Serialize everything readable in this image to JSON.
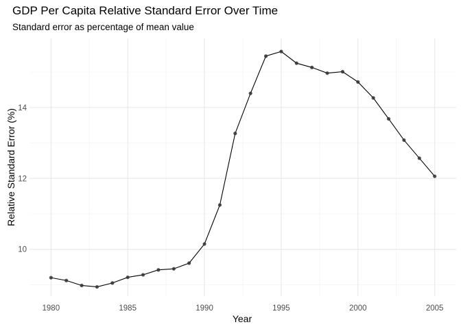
{
  "chart_data": {
    "type": "line",
    "title": "GDP Per Capita Relative Standard Error Over Time",
    "subtitle": "Standard error as percentage of mean value",
    "xlabel": "Year",
    "ylabel": "Relative Standard Error (%)",
    "xlim": [
      1978.6,
      2006.4
    ],
    "ylim": [
      8.68,
      15.95
    ],
    "x_ticks": [
      1980,
      1985,
      1990,
      1995,
      2000,
      2005
    ],
    "y_ticks": [
      10,
      12,
      14
    ],
    "grid": true,
    "legend": "none",
    "line_color": "#000000",
    "point_color": "#333333",
    "series": [
      {
        "x": [
          1980,
          1981,
          1982,
          1983,
          1984,
          1985,
          1986,
          1987,
          1988,
          1989,
          1990,
          1991,
          1992,
          1993,
          1994,
          1995,
          1996,
          1997,
          1998,
          1999,
          2000,
          2001,
          2002,
          2003,
          2004,
          2005
        ],
        "values": [
          9.2,
          9.12,
          8.98,
          8.94,
          9.05,
          9.21,
          9.28,
          9.42,
          9.45,
          9.61,
          10.15,
          11.25,
          13.27,
          14.4,
          15.45,
          15.58,
          15.25,
          15.13,
          14.97,
          15.01,
          14.72,
          14.27,
          13.68,
          13.08,
          12.57,
          12.06
        ]
      }
    ]
  }
}
